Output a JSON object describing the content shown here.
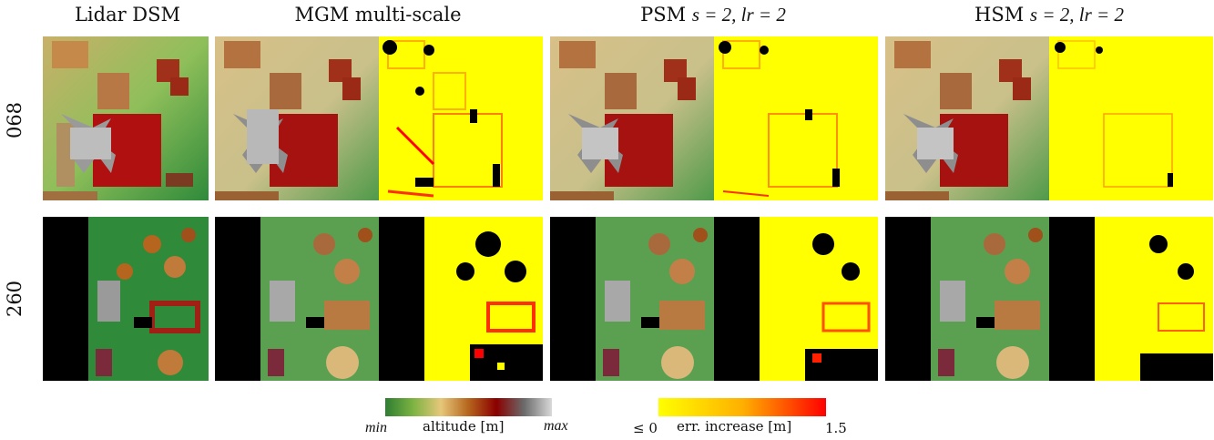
{
  "columns": {
    "lidar": "Lidar DSM",
    "mgm": "MGM multi-scale",
    "psm": {
      "prefix": "PSM ",
      "params": "s = 2, lr = 2"
    },
    "hsm": {
      "prefix": "HSM ",
      "params": "s = 2, lr = 2"
    }
  },
  "rows": [
    "068",
    "260"
  ],
  "legend_altitude": {
    "min": "min",
    "label": "altitude [m]",
    "max": "max",
    "colors": [
      "#2e7d32",
      "#7cb342",
      "#e6c77a",
      "#b5651d",
      "#8b0000",
      "#6b6b6b",
      "#d9d9d9"
    ]
  },
  "legend_error": {
    "min": "≤ 0",
    "label": "err. increase [m]",
    "max": "1.5",
    "colors": [
      "#ffff00",
      "#ffb000",
      "#ff0000"
    ]
  }
}
